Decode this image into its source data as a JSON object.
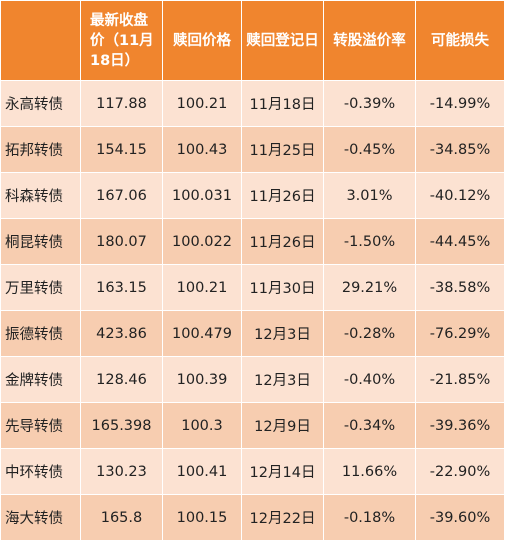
{
  "table": {
    "headers": [
      "最新收盘价（11月18日）",
      "赎回价格",
      "赎回登记日",
      "转股溢价率",
      "可能损失"
    ],
    "rows": [
      [
        "永高转债",
        "117.88",
        "100.21",
        "11月18日",
        "-0.39%",
        "-14.99%"
      ],
      [
        "拓邦转债",
        "154.15",
        "100.43",
        "11月25日",
        "-0.45%",
        "-34.85%"
      ],
      [
        "科森转债",
        "167.06",
        "100.031",
        "11月26日",
        "3.01%",
        "-40.12%"
      ],
      [
        "桐昆转债",
        "180.07",
        "100.022",
        "11月26日",
        "-1.50%",
        "-44.45%"
      ],
      [
        "万里转债",
        "163.15",
        "100.21",
        "11月30日",
        "29.21%",
        "-38.58%"
      ],
      [
        "振德转债",
        "423.86",
        "100.479",
        "12月3日",
        "-0.28%",
        "-76.29%"
      ],
      [
        "金牌转债",
        "128.46",
        "100.39",
        "12月3日",
        "-0.40%",
        "-21.85%"
      ],
      [
        "先导转债",
        "165.398",
        "100.3",
        "12月9日",
        "-0.34%",
        "-39.36%"
      ],
      [
        "中环转债",
        "130.23",
        "100.41",
        "12月14日",
        "11.66%",
        "-22.90%"
      ],
      [
        "海大转债",
        "165.8",
        "100.15",
        "12月22日",
        "-0.18%",
        "-39.60%"
      ]
    ]
  },
  "colors": {
    "header_bg": "#f0852e",
    "header_text": "#ffffff",
    "row_light": "#fce2d2",
    "row_dark": "#f7cdb0",
    "cell_text": "#222222"
  }
}
